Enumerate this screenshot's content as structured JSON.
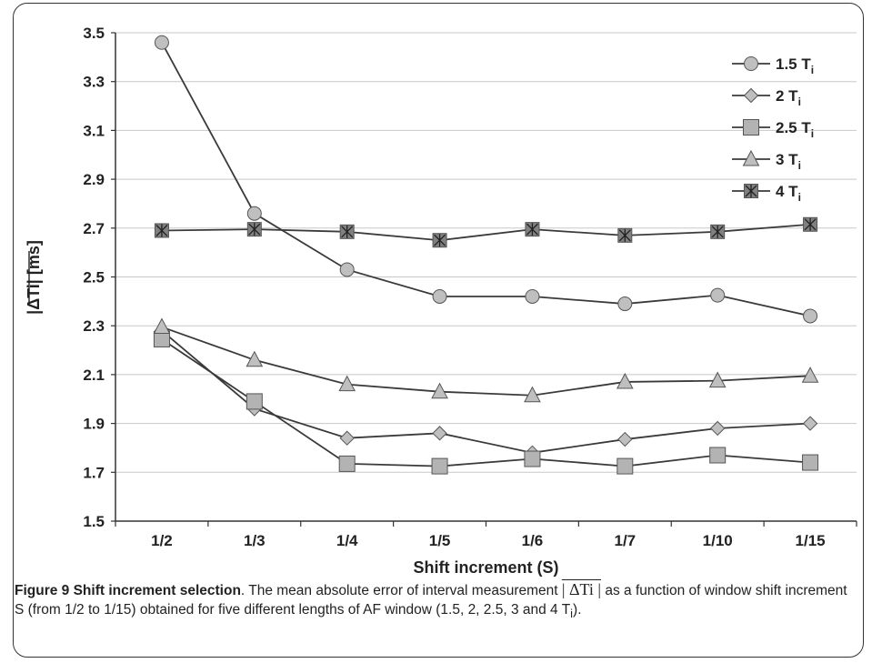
{
  "chart_data": {
    "type": "line",
    "categories": [
      "1/2",
      "1/3",
      "1/4",
      "1/5",
      "1/6",
      "1/7",
      "1/10",
      "1/15"
    ],
    "xlabel": "Shift increment (S)",
    "ylabel": "|ΔTi| [ms]",
    "ylim": [
      1.5,
      3.5
    ],
    "yticks": [
      "1.5",
      "1.7",
      "1.9",
      "2.1",
      "2.3",
      "2.5",
      "2.7",
      "2.9",
      "3.1",
      "3.3",
      "3.5"
    ],
    "grid": true,
    "legend_position": "top-right",
    "series": [
      {
        "name": "1.5 T",
        "sub": "i",
        "marker": "circle",
        "color": "#bfbfbf",
        "values": [
          3.46,
          2.76,
          2.53,
          2.42,
          2.42,
          2.39,
          2.425,
          2.34
        ]
      },
      {
        "name": "2 T",
        "sub": "i",
        "marker": "diamond",
        "color": "#bfbfbf",
        "values": [
          2.28,
          1.96,
          1.84,
          1.86,
          1.78,
          1.835,
          1.88,
          1.9
        ]
      },
      {
        "name": "2.5 T",
        "sub": "i",
        "marker": "square",
        "color": "#b3b3b3",
        "values": [
          2.245,
          1.99,
          1.735,
          1.725,
          1.755,
          1.725,
          1.77,
          1.74
        ]
      },
      {
        "name": "3 T",
        "sub": "i",
        "marker": "triangle",
        "color": "#bfbfbf",
        "values": [
          2.295,
          2.16,
          2.06,
          2.03,
          2.015,
          2.07,
          2.075,
          2.095
        ]
      },
      {
        "name": "4 T",
        "sub": "i",
        "marker": "star",
        "color": "#808080",
        "values": [
          2.69,
          2.695,
          2.685,
          2.65,
          2.695,
          2.67,
          2.685,
          2.715
        ]
      }
    ]
  },
  "caption": {
    "label": "Figure 9 Shift increment selection",
    "text_1": ". The mean absolute error of interval measurement ",
    "symbol": "| ΔTi |",
    "text_2": " as a function of window shift increment S (from 1/2 to 1/15) obtained for five different lengths of AF window (1.5, 2, 2.5, 3 and 4 T",
    "sub": "i",
    "text_3": ")."
  }
}
